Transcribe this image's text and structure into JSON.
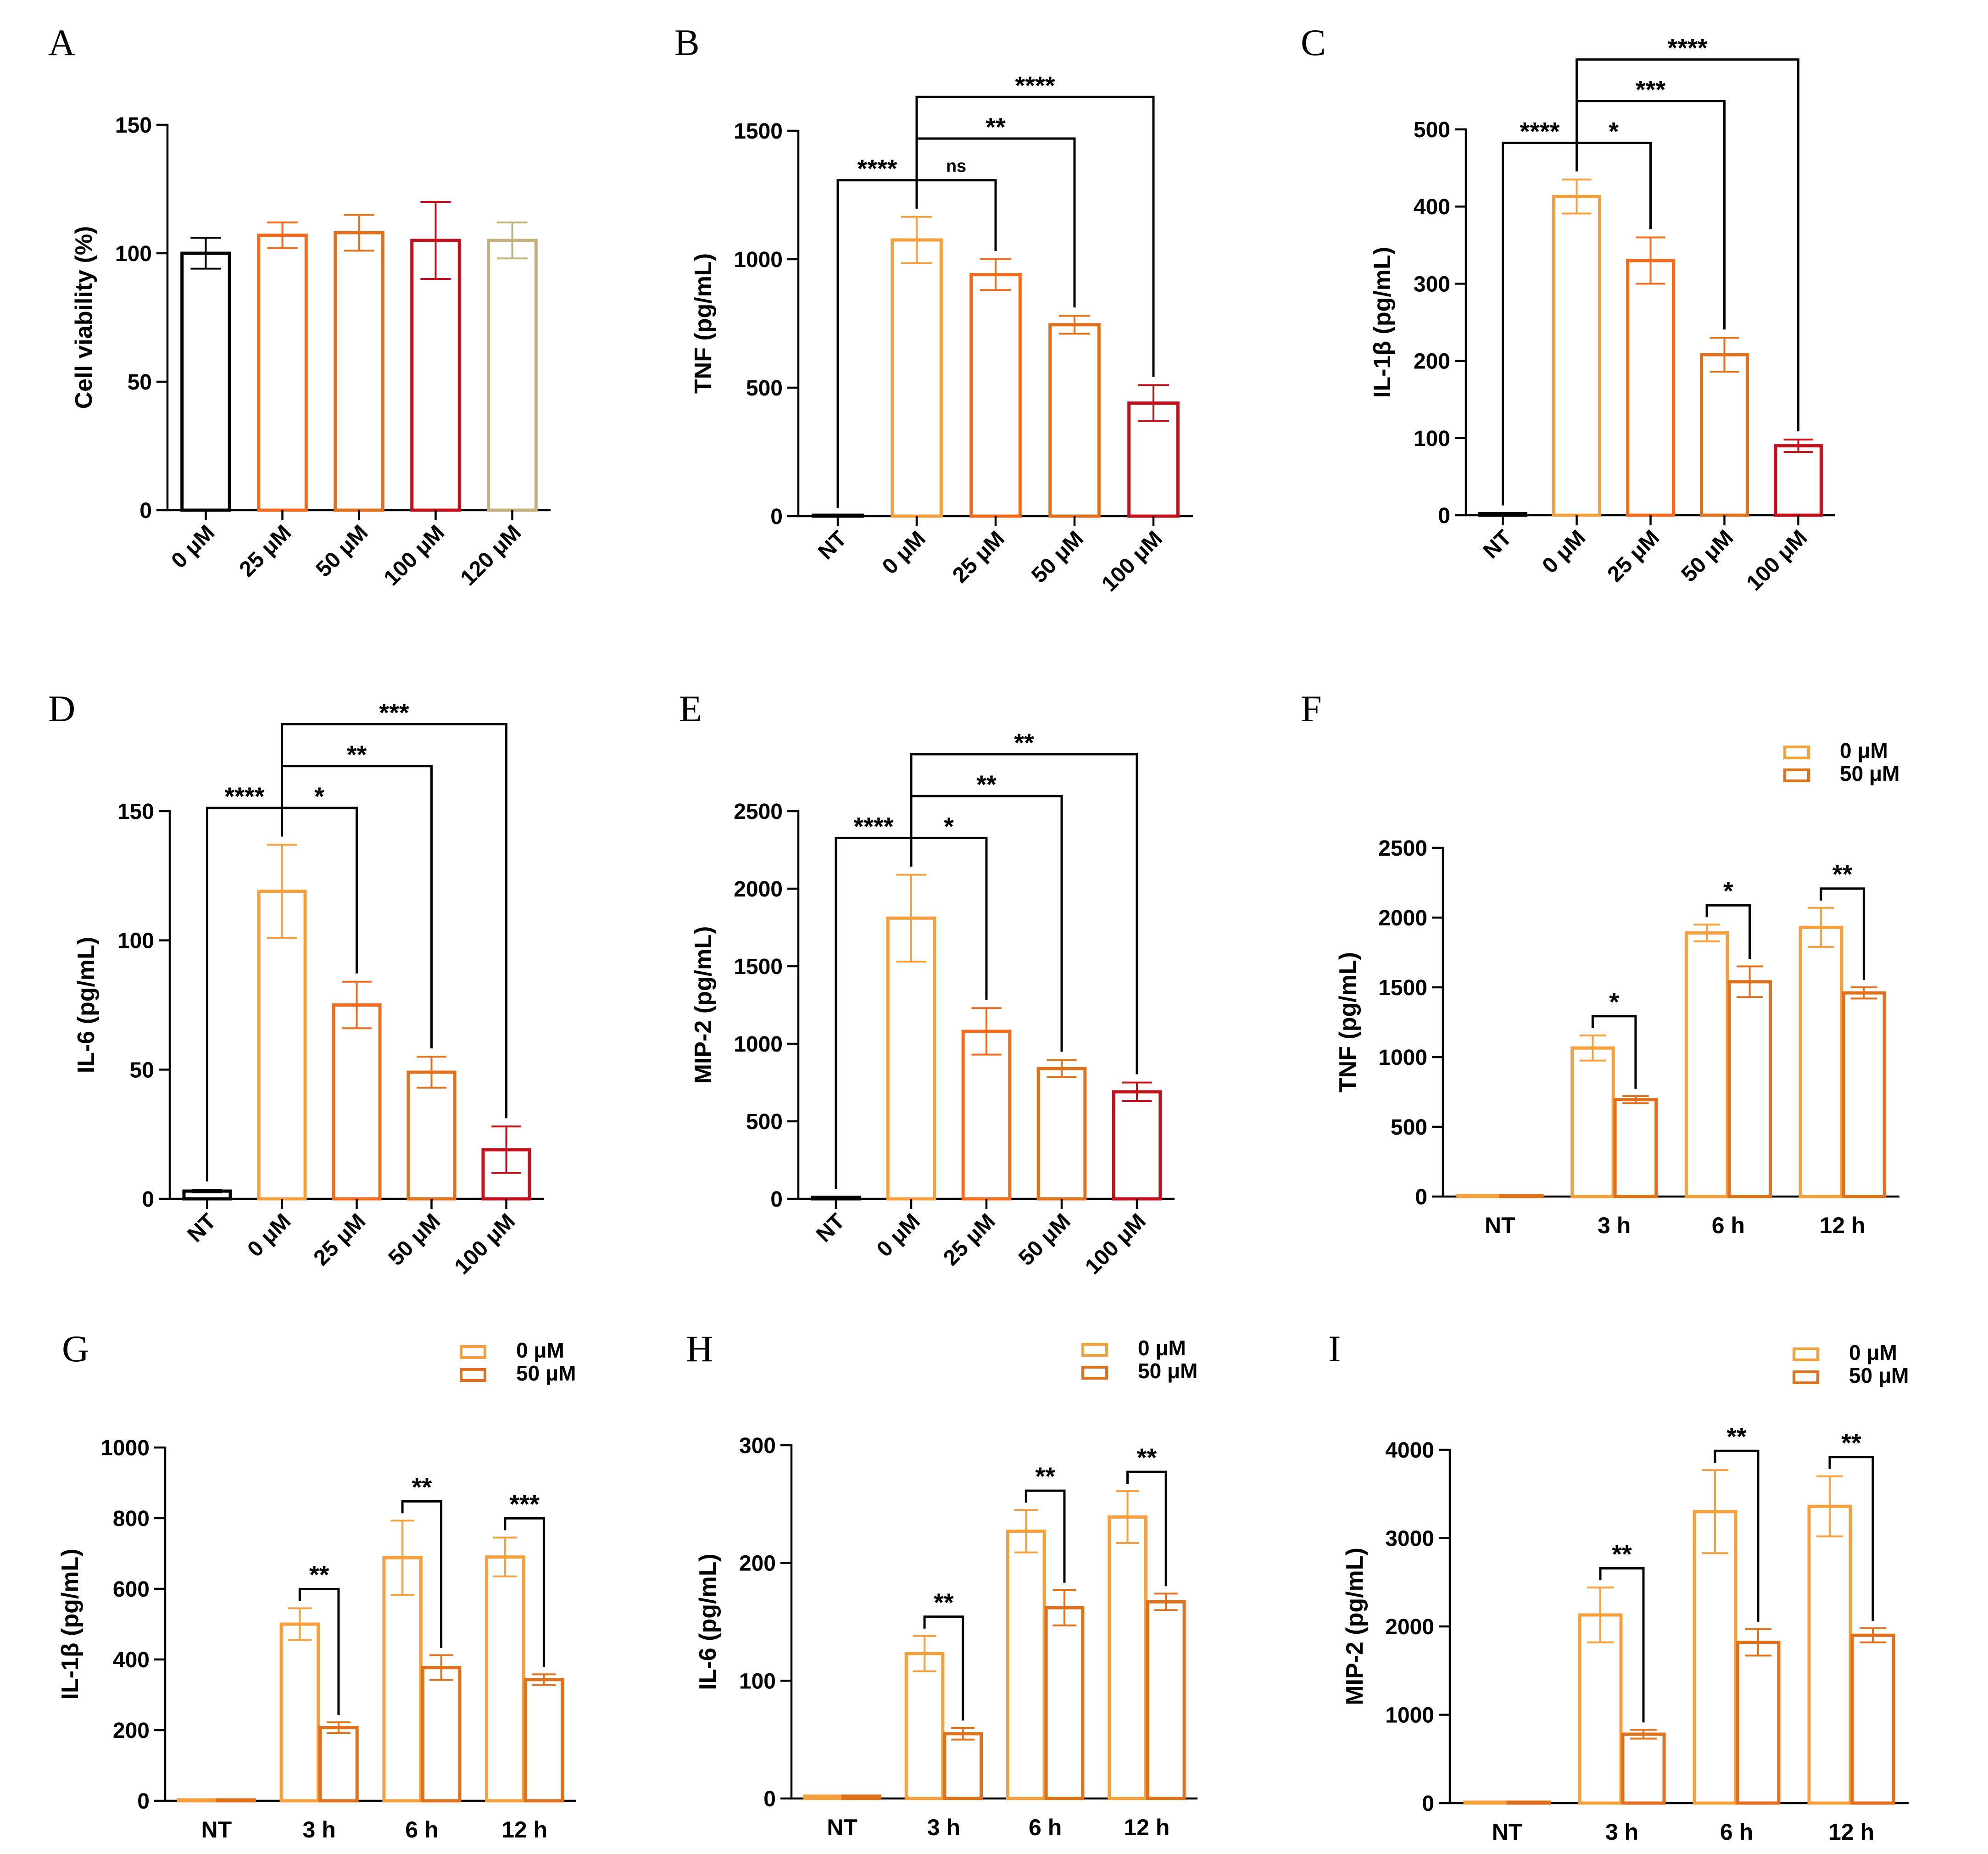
{
  "colors": {
    "black": "#000000",
    "light_orange": "#F5A03C",
    "orange": "#F26B1D",
    "dark_orange": "#E0711C",
    "red": "#C1121C",
    "tan": "#C2B280"
  },
  "chart_data": [
    {
      "id": "A",
      "type": "bar",
      "letter": "A",
      "ylabel": "Cell viability (%)",
      "ylim": [
        0,
        150
      ],
      "yticks": [
        "0",
        "50",
        "100",
        "150"
      ],
      "categories": [
        "0 μM",
        "25 μM",
        "50 μM",
        "100 μM",
        "120 μM"
      ],
      "series": [
        {
          "name": "",
          "values": [
            100,
            107,
            108,
            105,
            105
          ],
          "errors": [
            6,
            5,
            7,
            15,
            7
          ],
          "colors": [
            "black",
            "orange",
            "dark_orange",
            "red",
            "tan"
          ]
        }
      ],
      "brackets": []
    },
    {
      "id": "B",
      "type": "bar",
      "letter": "B",
      "ylabel": "TNF (pg/mL)",
      "ylim": [
        0,
        1500
      ],
      "yticks": [
        "0",
        "500",
        "1000",
        "1500"
      ],
      "categories": [
        "NT",
        "0 μM",
        "25 μM",
        "50 μM",
        "100 μM"
      ],
      "series": [
        {
          "name": "",
          "values": [
            0,
            1075,
            940,
            745,
            440
          ],
          "errors": [
            0,
            90,
            60,
            35,
            70
          ],
          "colors": [
            "black",
            "light_orange",
            "orange",
            "dark_orange",
            "red"
          ]
        }
      ],
      "brackets": [
        {
          "from": 1,
          "to": 0,
          "label": "****"
        },
        {
          "from": 1,
          "to": 2,
          "label": "ns"
        },
        {
          "from": 1,
          "to": 3,
          "label": "**"
        },
        {
          "from": 1,
          "to": 4,
          "label": "****"
        }
      ]
    },
    {
      "id": "C",
      "type": "bar",
      "letter": "C",
      "ylabel": "IL-1β (pg/mL)",
      "ylim": [
        0,
        500
      ],
      "yticks": [
        "0",
        "100",
        "200",
        "300",
        "400",
        "500"
      ],
      "categories": [
        "NT",
        "0 μM",
        "25 μM",
        "50 μM",
        "100 μM"
      ],
      "series": [
        {
          "name": "",
          "values": [
            2,
            413,
            330,
            208,
            90
          ],
          "errors": [
            0,
            22,
            30,
            22,
            8
          ],
          "colors": [
            "black",
            "light_orange",
            "orange",
            "dark_orange",
            "red"
          ]
        }
      ],
      "brackets": [
        {
          "from": 1,
          "to": 0,
          "label": "****"
        },
        {
          "from": 1,
          "to": 2,
          "label": "*"
        },
        {
          "from": 1,
          "to": 3,
          "label": "***"
        },
        {
          "from": 1,
          "to": 4,
          "label": "****"
        }
      ]
    },
    {
      "id": "D",
      "type": "bar",
      "letter": "D",
      "ylabel": "IL-6 (pg/mL)",
      "ylim": [
        0,
        150
      ],
      "yticks": [
        "0",
        "50",
        "100",
        "150"
      ],
      "categories": [
        "NT",
        "0 μM",
        "25 μM",
        "50 μM",
        "100 μM"
      ],
      "series": [
        {
          "name": "",
          "values": [
            3,
            119,
            75,
            49,
            19
          ],
          "errors": [
            0.5,
            18,
            9,
            6,
            9
          ],
          "colors": [
            "black",
            "light_orange",
            "orange",
            "dark_orange",
            "red"
          ]
        }
      ],
      "brackets": [
        {
          "from": 1,
          "to": 0,
          "label": "****"
        },
        {
          "from": 1,
          "to": 2,
          "label": "*"
        },
        {
          "from": 1,
          "to": 3,
          "label": "**"
        },
        {
          "from": 1,
          "to": 4,
          "label": "***"
        }
      ]
    },
    {
      "id": "E",
      "type": "bar",
      "letter": "E",
      "ylabel": "MIP-2 (pg/mL)",
      "ylim": [
        0,
        2500
      ],
      "yticks": [
        "0",
        "500",
        "1000",
        "1500",
        "2000",
        "2500"
      ],
      "categories": [
        "NT",
        "0 μM",
        "25 μM",
        "50 μM",
        "100 μM"
      ],
      "series": [
        {
          "name": "",
          "values": [
            10,
            1810,
            1080,
            840,
            690
          ],
          "errors": [
            0,
            280,
            150,
            55,
            60
          ],
          "colors": [
            "black",
            "light_orange",
            "orange",
            "dark_orange",
            "red"
          ]
        }
      ],
      "brackets": [
        {
          "from": 1,
          "to": 0,
          "label": "****"
        },
        {
          "from": 1,
          "to": 2,
          "label": "*"
        },
        {
          "from": 1,
          "to": 3,
          "label": "**"
        },
        {
          "from": 1,
          "to": 4,
          "label": "**"
        }
      ]
    },
    {
      "id": "F",
      "type": "grouped_bar",
      "letter": "F",
      "ylabel": "TNF (pg/mL)",
      "ylim": [
        0,
        2500
      ],
      "yticks": [
        "0",
        "500",
        "1000",
        "1500",
        "2000",
        "2500"
      ],
      "categories": [
        "NT",
        "3 h",
        "6 h",
        "12 h"
      ],
      "legend": [
        "0 μM",
        "50 μM"
      ],
      "series": [
        {
          "name": "0 μM",
          "color": "light_orange",
          "values": [
            5,
            1065,
            1890,
            1930
          ],
          "errors": [
            0,
            90,
            60,
            140
          ]
        },
        {
          "name": "50 μM",
          "color": "dark_orange",
          "values": [
            5,
            695,
            1540,
            1460
          ],
          "errors": [
            0,
            25,
            110,
            40
          ]
        }
      ],
      "significance": [
        "",
        "*",
        "*",
        "**"
      ]
    },
    {
      "id": "G",
      "type": "grouped_bar",
      "letter": "G",
      "ylabel": "IL-1β (pg/mL)",
      "ylim": [
        0,
        1000
      ],
      "yticks": [
        "0",
        "200",
        "400",
        "600",
        "800",
        "1000"
      ],
      "categories": [
        "NT",
        "3 h",
        "6 h",
        "12 h"
      ],
      "legend": [
        "0 μM",
        "50 μM"
      ],
      "series": [
        {
          "name": "0 μM",
          "color": "light_orange",
          "values": [
            2,
            500,
            688,
            690
          ],
          "errors": [
            0,
            45,
            105,
            55
          ]
        },
        {
          "name": "50 μM",
          "color": "dark_orange",
          "values": [
            2,
            207,
            377,
            343
          ],
          "errors": [
            0,
            15,
            35,
            15
          ]
        }
      ],
      "significance": [
        "",
        "**",
        "**",
        "***"
      ]
    },
    {
      "id": "H",
      "type": "grouped_bar",
      "letter": "H",
      "ylabel": "IL-6 (pg/mL)",
      "ylim": [
        0,
        300
      ],
      "yticks": [
        "0",
        "100",
        "200",
        "300"
      ],
      "categories": [
        "NT",
        "3 h",
        "6 h",
        "12 h"
      ],
      "legend": [
        "0 μM",
        "50 μM"
      ],
      "series": [
        {
          "name": "0 μM",
          "color": "light_orange",
          "values": [
            2,
            123,
            227,
            239
          ],
          "errors": [
            0,
            15,
            18,
            22
          ]
        },
        {
          "name": "50 μM",
          "color": "dark_orange",
          "values": [
            2,
            55,
            162,
            167
          ],
          "errors": [
            0,
            5,
            15,
            7
          ]
        }
      ],
      "significance": [
        "",
        "**",
        "**",
        "**"
      ]
    },
    {
      "id": "I",
      "type": "grouped_bar",
      "letter": "I",
      "ylabel": "MIP-2 (pg/mL)",
      "ylim": [
        0,
        4000
      ],
      "yticks": [
        "0",
        "1000",
        "2000",
        "3000",
        "4000"
      ],
      "categories": [
        "NT",
        "3 h",
        "6 h",
        "12 h"
      ],
      "legend": [
        "0 μM",
        "50 μM"
      ],
      "series": [
        {
          "name": "0 μM",
          "color": "light_orange",
          "values": [
            10,
            2130,
            3300,
            3360
          ],
          "errors": [
            0,
            310,
            470,
            340
          ]
        },
        {
          "name": "50 μM",
          "color": "dark_orange",
          "values": [
            10,
            780,
            1820,
            1900
          ],
          "errors": [
            0,
            50,
            150,
            80
          ]
        }
      ],
      "significance": [
        "",
        "**",
        "**",
        "**"
      ]
    }
  ]
}
